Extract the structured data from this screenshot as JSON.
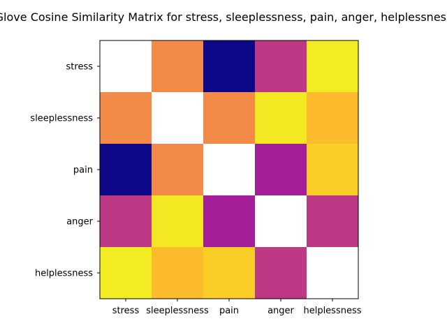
{
  "chart_data": {
    "type": "heatmap",
    "title": "Glove Cosine Similarity Matrix for stress, sleeplessness, pain, anger, helplessness",
    "xlabel": "",
    "ylabel": "",
    "colormap": "plasma",
    "x_categories": [
      "stress",
      "sleeplessness",
      "pain",
      "anger",
      "helplessness"
    ],
    "y_categories": [
      "stress",
      "sleeplessness",
      "pain",
      "anger",
      "helplessness"
    ],
    "value_range": [
      0,
      1
    ],
    "diagonal": "blank",
    "values": [
      [
        null,
        0.72,
        0.0,
        0.45,
        0.97
      ],
      [
        0.72,
        null,
        0.72,
        0.96,
        0.85
      ],
      [
        0.0,
        0.72,
        null,
        0.36,
        0.9
      ],
      [
        0.45,
        0.96,
        0.36,
        null,
        0.45
      ],
      [
        0.97,
        0.85,
        0.9,
        0.45,
        null
      ]
    ],
    "colors": {
      "diagonal": "#ffffff",
      "frame": "#000000"
    }
  }
}
